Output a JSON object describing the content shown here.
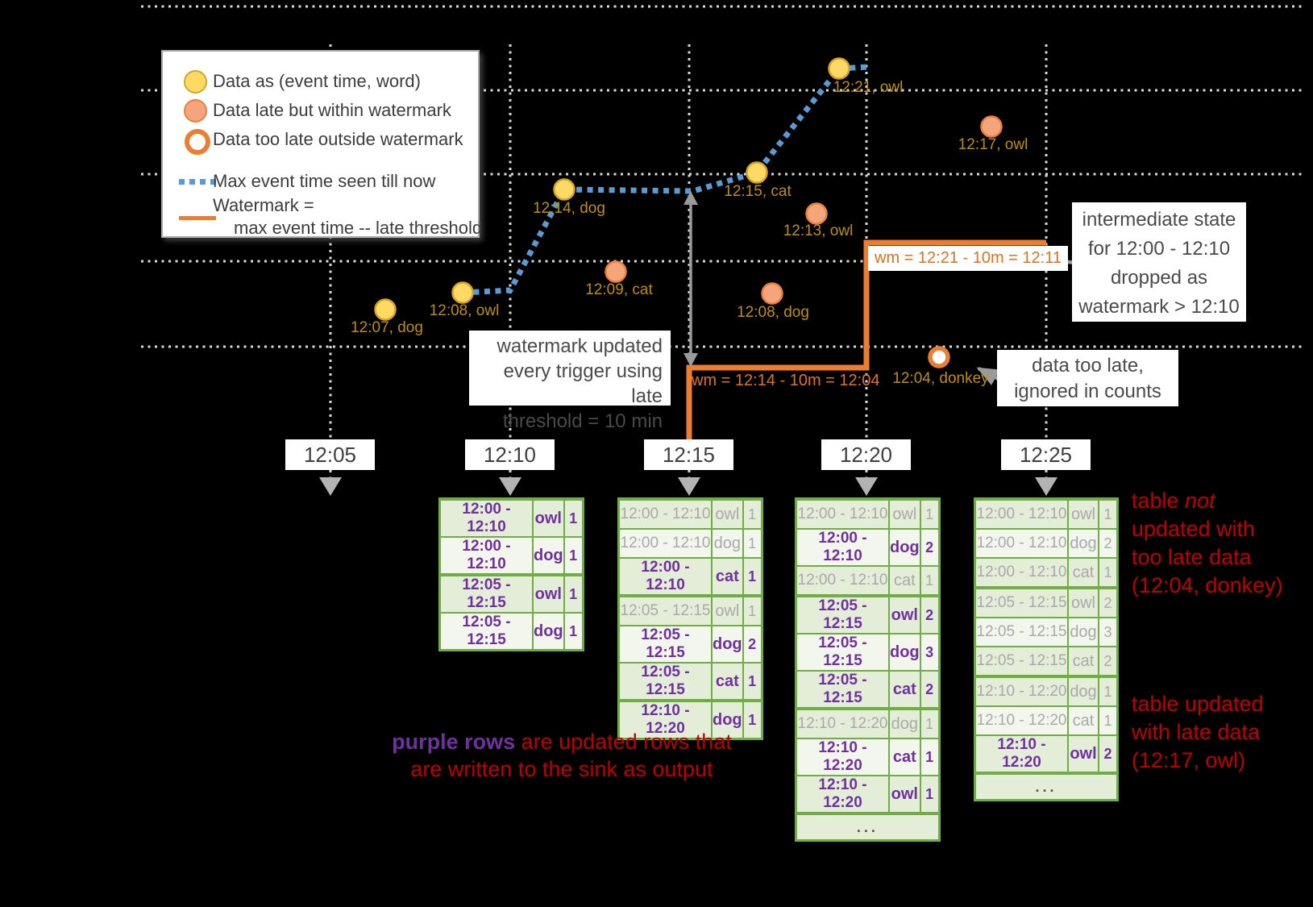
{
  "colors": {
    "purple": "#7030a0",
    "red": "#c00000",
    "orange": "#ed7d31",
    "green": "#70ad47",
    "blue": "#5b9bd5",
    "yellow": "#ffd966",
    "salmon": "#f4a57c",
    "point_label_olive": "#bf8f00"
  },
  "legend": {
    "items": [
      {
        "icon": "ontime-dot-icon",
        "label": "Data as (event time, word)"
      },
      {
        "icon": "late-dot-icon",
        "label": "Data late but within watermark"
      },
      {
        "icon": "toolate-ring-icon",
        "label": "Data too late outside watermark"
      },
      {
        "icon": "max-event-time-line-icon",
        "label": "Max event time seen till now"
      },
      {
        "icon": "watermark-line-icon",
        "label": "Watermark =",
        "label_line2": "max event time -- late threshold"
      }
    ]
  },
  "points": [
    {
      "label": "12:07, dog",
      "type": "ontime"
    },
    {
      "label": "12:08, owl",
      "type": "ontime"
    },
    {
      "label": "12:14, dog",
      "type": "ontime"
    },
    {
      "label": "12:15, cat",
      "type": "ontime"
    },
    {
      "label": "12:21, owl",
      "type": "ontime"
    },
    {
      "label": "12:09, cat",
      "type": "late"
    },
    {
      "label": "12:13, owl",
      "type": "late"
    },
    {
      "label": "12:08, dog",
      "type": "late"
    },
    {
      "label": "12:17, owl",
      "type": "late"
    },
    {
      "label": "12:04, donkey",
      "type": "toolate"
    }
  ],
  "watermarks": {
    "wm1": "wm = 12:14 - 10m = 12:04",
    "wm2": "wm = 12:21 - 10m = 12:11"
  },
  "callouts": {
    "wm_updated": {
      "line1": "watermark updated",
      "line2": "every trigger using late",
      "line3": "threshold = 10 min"
    },
    "intermediate": {
      "line1": "intermediate state",
      "line2": "for 12:00 - 12:10",
      "line3": "dropped as",
      "line4": "watermark > 12:10"
    },
    "too_late": {
      "line1": "data too late,",
      "line2": "ignored in counts"
    }
  },
  "timeline": [
    {
      "label": "12:05"
    },
    {
      "label": "12:10"
    },
    {
      "label": "12:15"
    },
    {
      "label": "12:20"
    },
    {
      "label": "12:25"
    }
  ],
  "ellipsis_label": "...",
  "tables": [
    {
      "trigger": "12:10",
      "ellipsis": false,
      "rows": [
        {
          "window": "12:00 - 12:10",
          "word": "owl",
          "count": "1",
          "updated": true
        },
        {
          "window": "12:00 - 12:10",
          "word": "dog",
          "count": "1",
          "updated": true
        },
        {
          "window": "12:05 - 12:15",
          "word": "owl",
          "count": "1",
          "updated": true
        },
        {
          "window": "12:05 - 12:15",
          "word": "dog",
          "count": "1",
          "updated": true
        }
      ]
    },
    {
      "trigger": "12:15",
      "ellipsis": false,
      "rows": [
        {
          "window": "12:00 - 12:10",
          "word": "owl",
          "count": "1",
          "updated": false
        },
        {
          "window": "12:00 - 12:10",
          "word": "dog",
          "count": "1",
          "updated": false
        },
        {
          "window": "12:00 - 12:10",
          "word": "cat",
          "count": "1",
          "updated": true
        },
        {
          "window": "12:05 - 12:15",
          "word": "owl",
          "count": "1",
          "updated": false
        },
        {
          "window": "12:05 - 12:15",
          "word": "dog",
          "count": "2",
          "updated": true
        },
        {
          "window": "12:05 - 12:15",
          "word": "cat",
          "count": "1",
          "updated": true
        },
        {
          "window": "12:10 - 12:20",
          "word": "dog",
          "count": "1",
          "updated": true
        }
      ]
    },
    {
      "trigger": "12:20",
      "ellipsis": true,
      "rows": [
        {
          "window": "12:00 - 12:10",
          "word": "owl",
          "count": "1",
          "updated": false
        },
        {
          "window": "12:00 - 12:10",
          "word": "dog",
          "count": "2",
          "updated": true
        },
        {
          "window": "12:00 - 12:10",
          "word": "cat",
          "count": "1",
          "updated": false
        },
        {
          "window": "12:05 - 12:15",
          "word": "owl",
          "count": "2",
          "updated": true
        },
        {
          "window": "12:05 - 12:15",
          "word": "dog",
          "count": "3",
          "updated": true
        },
        {
          "window": "12:05 - 12:15",
          "word": "cat",
          "count": "2",
          "updated": true
        },
        {
          "window": "12:10 - 12:20",
          "word": "dog",
          "count": "1",
          "updated": false
        },
        {
          "window": "12:10 - 12:20",
          "word": "cat",
          "count": "1",
          "updated": true
        },
        {
          "window": "12:10 - 12:20",
          "word": "owl",
          "count": "1",
          "updated": true
        }
      ]
    },
    {
      "trigger": "12:25",
      "ellipsis": true,
      "rows": [
        {
          "window": "12:00 - 12:10",
          "word": "owl",
          "count": "1",
          "updated": false
        },
        {
          "window": "12:00 - 12:10",
          "word": "dog",
          "count": "2",
          "updated": false
        },
        {
          "window": "12:00 - 12:10",
          "word": "cat",
          "count": "1",
          "updated": false
        },
        {
          "window": "12:05 - 12:15",
          "word": "owl",
          "count": "2",
          "updated": false
        },
        {
          "window": "12:05 - 12:15",
          "word": "dog",
          "count": "3",
          "updated": false
        },
        {
          "window": "12:05 - 12:15",
          "word": "cat",
          "count": "2",
          "updated": false
        },
        {
          "window": "12:10 - 12:20",
          "word": "dog",
          "count": "1",
          "updated": false
        },
        {
          "window": "12:10 - 12:20",
          "word": "cat",
          "count": "1",
          "updated": false
        },
        {
          "window": "12:10 - 12:20",
          "word": "owl",
          "count": "2",
          "updated": true
        }
      ]
    }
  ],
  "notes": {
    "sink": {
      "lead": "purple rows",
      "rest": " are updated rows that",
      "line2": "are written to the sink as output"
    },
    "not_updated": {
      "line1_a": "table ",
      "line1_em": "not",
      "line2": "updated with",
      "line3": "too late data",
      "line4": "(12:04, donkey)"
    },
    "updated_late": {
      "line1": "table updated",
      "line2": "with late data",
      "line3": "(12:17, owl)"
    }
  }
}
